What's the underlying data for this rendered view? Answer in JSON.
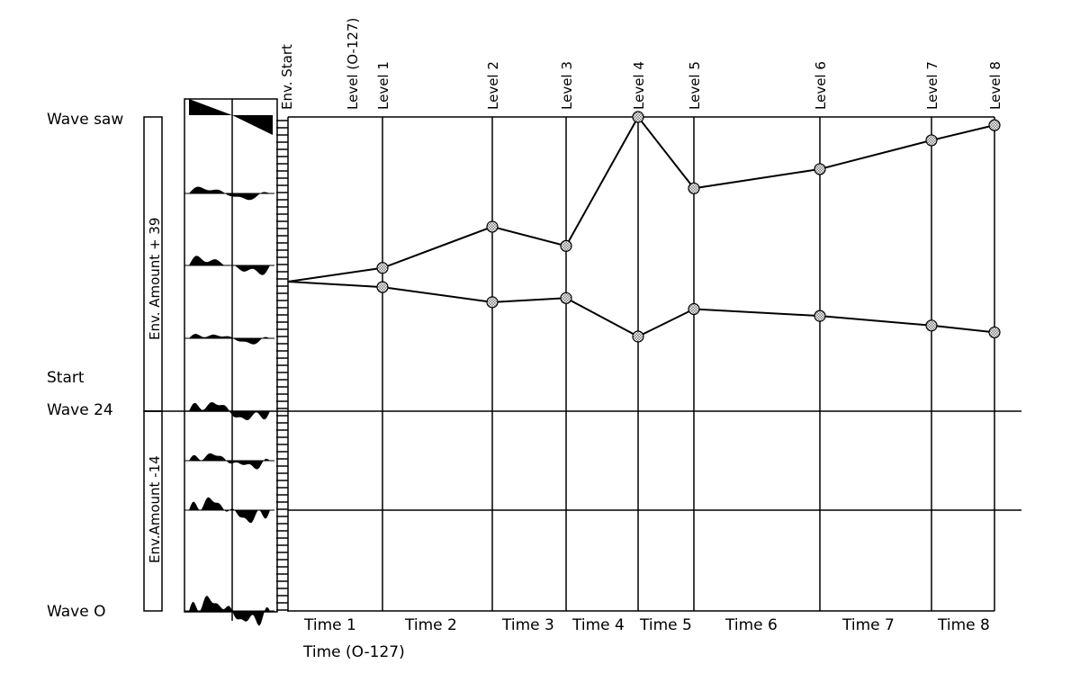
{
  "left_labels": {
    "wave_top": "Wave saw",
    "start": "Start",
    "wave_mid": "Wave 24",
    "wave_bottom": "Wave O"
  },
  "amount_labels": {
    "upper": "Env. Amount + 39",
    "lower": "Env.Amount -14"
  },
  "env_start_label": "Env. Start",
  "level_axis_title": "Level (O-127)",
  "time_axis_title": "Time (O-127)",
  "chart_data": {
    "type": "line",
    "title": "",
    "xlabel": "Time (O-127)",
    "ylabel": "Level (O-127)",
    "level_labels": [
      "Level 1",
      "Level 2",
      "Level 3",
      "Level 4",
      "Level 5",
      "Level 6",
      "Level 7",
      "Level 8"
    ],
    "time_labels": [
      "Time 1",
      "Time 2",
      "Time 3",
      "Time 4",
      "Time 5",
      "Time 6",
      "Time 7",
      "Time 8"
    ],
    "y_reference_labels": [
      "Wave saw",
      "Wave 24",
      "Wave O"
    ],
    "series": [
      {
        "points": [
          [
            "Env. Start",
            24
          ],
          [
            "Level 1",
            25
          ],
          [
            "Level 2",
            28
          ],
          [
            "Level 3",
            26.6
          ],
          [
            "Level 4",
            36
          ],
          [
            "Level 5",
            30.8
          ],
          [
            "Level 6",
            32.2
          ],
          [
            "Level 7",
            34.3
          ],
          [
            "Level 8",
            35.4
          ]
        ]
      },
      {
        "points": [
          [
            "Env. Start",
            24
          ],
          [
            "Level 1",
            23.6
          ],
          [
            "Level 2",
            22.5
          ],
          [
            "Level 3",
            22.8
          ],
          [
            "Level 4",
            20
          ],
          [
            "Level 5",
            22
          ],
          [
            "Level 6",
            21.5
          ],
          [
            "Level 7",
            20.8
          ],
          [
            "Level 8",
            20.3
          ]
        ]
      }
    ]
  }
}
